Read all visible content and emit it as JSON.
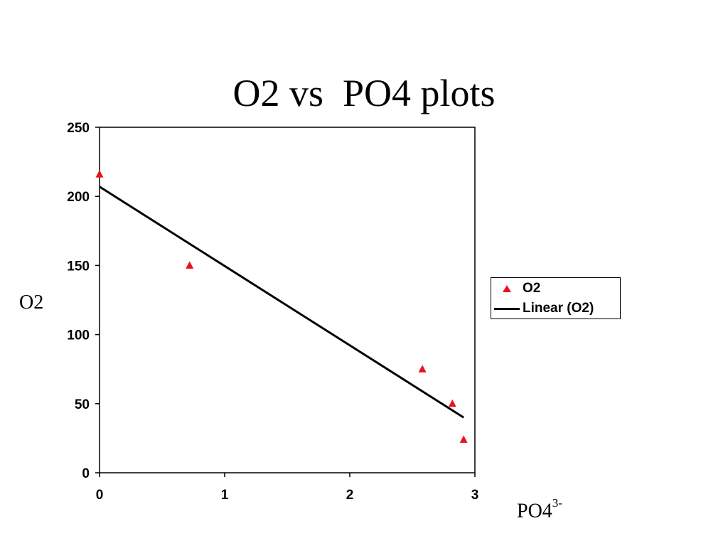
{
  "chart_data": {
    "type": "scatter",
    "title": "O2 vs  PO4 plots",
    "ylabel": "O2",
    "xlabel_base": "PO4",
    "xlabel_sup": "3-",
    "xlim": [
      0,
      3
    ],
    "ylim": [
      0,
      250
    ],
    "xticks": [
      "0",
      "1",
      "2",
      "3"
    ],
    "yticks": [
      "0",
      "50",
      "100",
      "150",
      "200",
      "250"
    ],
    "series": [
      {
        "name": "O2",
        "marker": "triangle",
        "color": "#e8141c",
        "points": [
          {
            "x": 0.0,
            "y": 216
          },
          {
            "x": 0.72,
            "y": 150
          },
          {
            "x": 2.58,
            "y": 75
          },
          {
            "x": 2.82,
            "y": 50
          },
          {
            "x": 2.91,
            "y": 24
          }
        ]
      },
      {
        "name": "Linear (O2)",
        "type": "line",
        "color": "#000000",
        "points": [
          {
            "x": 0.0,
            "y": 207
          },
          {
            "x": 2.91,
            "y": 40
          }
        ]
      }
    ],
    "legend_position": "right",
    "grid": false
  }
}
